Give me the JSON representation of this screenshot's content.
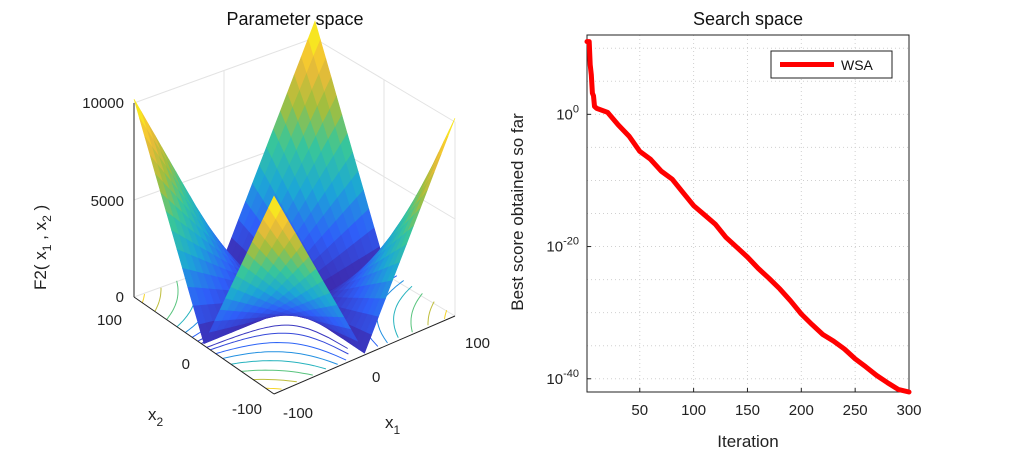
{
  "chart_data": [
    {
      "type": "surface3d",
      "title": "Parameter space",
      "function_label": "F2",
      "zlabel": {
        "prefix": "F2( x",
        "sub1": "1",
        "mid": " , x",
        "sub2": "2",
        "suffix": " )"
      },
      "xlabel": {
        "base": "x",
        "sub": "1"
      },
      "ylabel": {
        "base": "x",
        "sub": "2"
      },
      "xlim": [
        -100,
        100
      ],
      "ylim": [
        -100,
        100
      ],
      "zlim": [
        0,
        10000
      ],
      "x_ticks": [
        "-100",
        "0",
        "100"
      ],
      "y_ticks": [
        "-100",
        "0",
        "100"
      ],
      "z_ticks": [
        "0",
        "5000",
        "10000"
      ],
      "colormap": [
        "#3e26a8",
        "#2f5ef9",
        "#1ca7d6",
        "#38c69a",
        "#a5be3d",
        "#f3bb38",
        "#f9fb15"
      ],
      "contours_on_floor": true,
      "grid": true
    },
    {
      "type": "line",
      "title": "Search space",
      "xlabel": "Iteration",
      "ylabel": "Best score obtained so far",
      "xlim": [
        1,
        300
      ],
      "yscale": "log",
      "ylim_exponent": [
        -42,
        12
      ],
      "x_ticks": [
        "50",
        "100",
        "150",
        "200",
        "250",
        "300"
      ],
      "y_ticks": [
        {
          "base": "10",
          "exp": "0",
          "value_exp": 0
        },
        {
          "base": "10",
          "exp": "-20",
          "value_exp": -20
        },
        {
          "base": "10",
          "exp": "-40",
          "value_exp": -40
        }
      ],
      "grid": true,
      "legend_position": "top-right",
      "series": [
        {
          "name": "WSA",
          "color": "#ff0000",
          "x": [
            1,
            3,
            4,
            5,
            6,
            7,
            8,
            10,
            20,
            30,
            40,
            50,
            60,
            70,
            80,
            90,
            100,
            110,
            120,
            130,
            140,
            150,
            160,
            170,
            180,
            190,
            200,
            210,
            220,
            230,
            240,
            250,
            260,
            270,
            280,
            290,
            300
          ],
          "log10_y": [
            11,
            11,
            7.5,
            6,
            3.2,
            2.8,
            1.2,
            0.9,
            0.3,
            -1.6,
            -3.3,
            -5.6,
            -6.8,
            -8.6,
            -9.8,
            -11.8,
            -13.8,
            -15.2,
            -16.6,
            -18.6,
            -20.1,
            -21.6,
            -23.3,
            -24.8,
            -26.4,
            -28.2,
            -30.2,
            -31.8,
            -33.3,
            -34.3,
            -35.5,
            -37.0,
            -38.2,
            -39.5,
            -40.6,
            -41.6,
            -42.0
          ]
        }
      ]
    }
  ]
}
